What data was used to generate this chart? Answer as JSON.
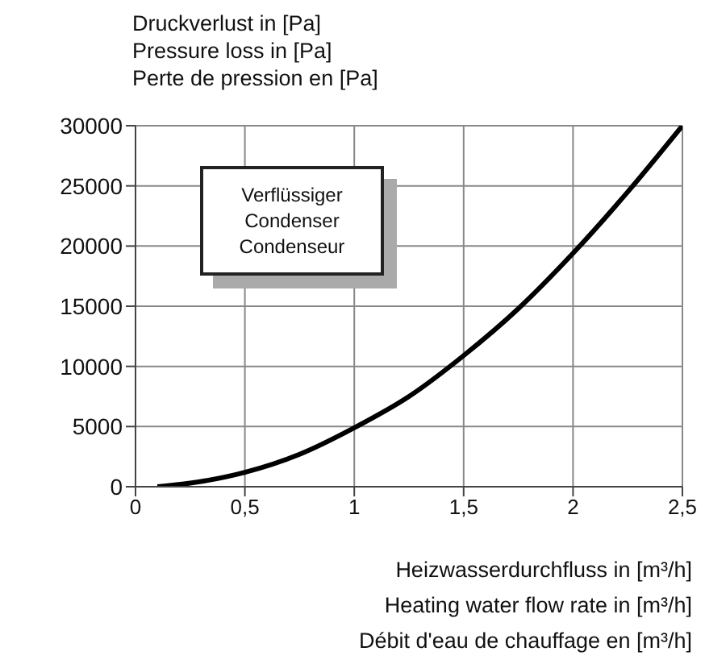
{
  "chart_data": {
    "type": "line",
    "ylabel": "Druckverlust in [Pa]\nPressure loss in [Pa]\nPerte de pression en [Pa]",
    "xlabel": "Heizwasserdurchfluss in [m³/h]\nHeating water flow rate in [m³/h]\nDébit d'eau de chauffage en [m³/h]",
    "annotations": [
      "Verflüssiger\nCondenser\nCondenseur"
    ],
    "x": [
      0.1,
      0.25,
      0.5,
      0.75,
      1,
      1.25,
      1.5,
      1.75,
      2,
      2.25,
      2.5
    ],
    "series": [
      {
        "color": "#000000",
        "values": [
          0,
          300,
          1200,
          2700,
          4900,
          7500,
          10900,
          14800,
          19400,
          24500,
          30000
        ]
      }
    ],
    "xlim": [
      0,
      2.5
    ],
    "xticks": [
      0,
      {
        "value": 0.5,
        "label": "0,5"
      },
      1,
      {
        "value": 1.5,
        "label": "1,5"
      },
      2,
      {
        "value": 2.5,
        "label": "2,5"
      }
    ],
    "ylim": [
      0,
      30000
    ],
    "yticks": [
      0,
      5000,
      10000,
      15000,
      20000,
      25000,
      30000
    ],
    "grid": true,
    "marker": "none",
    "line_style": "solid"
  }
}
